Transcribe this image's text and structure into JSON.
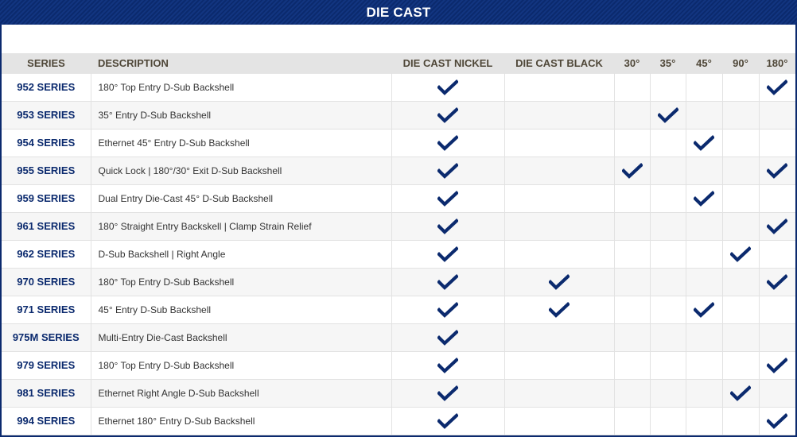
{
  "title": "DIE CAST",
  "headers": [
    "SERIES",
    "DESCRIPTION",
    "DIE CAST NICKEL",
    "DIE CAST BLACK",
    "30°",
    "35°",
    "45°",
    "90°",
    "180°"
  ],
  "check_color": "#0b2a6e",
  "check_icon": "checkmark-icon",
  "rows": [
    {
      "series": "952 SERIES",
      "description": "180° Top Entry D-Sub Backshell",
      "checks": [
        true,
        false,
        false,
        false,
        false,
        false,
        true
      ]
    },
    {
      "series": "953 SERIES",
      "description": "35° Entry D-Sub Backshell",
      "checks": [
        true,
        false,
        false,
        true,
        false,
        false,
        false
      ]
    },
    {
      "series": "954 SERIES",
      "description": "Ethernet 45° Entry D-Sub Backshell",
      "checks": [
        true,
        false,
        false,
        false,
        true,
        false,
        false
      ]
    },
    {
      "series": "955 SERIES",
      "description": "Quick Lock | 180°/30° Exit D-Sub Backshell",
      "checks": [
        true,
        false,
        true,
        false,
        false,
        false,
        true
      ]
    },
    {
      "series": "959 SERIES",
      "description": "Dual Entry Die-Cast 45° D-Sub Backshell",
      "checks": [
        true,
        false,
        false,
        false,
        true,
        false,
        false
      ]
    },
    {
      "series": "961 SERIES",
      "description": "180° Straight Entry Backskell | Clamp Strain Relief",
      "checks": [
        true,
        false,
        false,
        false,
        false,
        false,
        true
      ]
    },
    {
      "series": "962 SERIES",
      "description": "D-Sub Backshell | Right Angle",
      "checks": [
        true,
        false,
        false,
        false,
        false,
        true,
        false
      ]
    },
    {
      "series": "970 SERIES",
      "description": "180° Top Entry D-Sub Backshell",
      "checks": [
        true,
        true,
        false,
        false,
        false,
        false,
        true
      ]
    },
    {
      "series": "971 SERIES",
      "description": "45° Entry D-Sub Backshell",
      "checks": [
        true,
        true,
        false,
        false,
        true,
        false,
        false
      ]
    },
    {
      "series": "975M SERIES",
      "description": "Multi-Entry Die-Cast Backshell",
      "checks": [
        true,
        false,
        false,
        false,
        false,
        false,
        false
      ]
    },
    {
      "series": "979 SERIES",
      "description": "180° Top Entry D-Sub Backshell",
      "checks": [
        true,
        false,
        false,
        false,
        false,
        false,
        true
      ]
    },
    {
      "series": "981 SERIES",
      "description": "Ethernet Right Angle D-Sub Backshell",
      "checks": [
        true,
        false,
        false,
        false,
        false,
        true,
        false
      ]
    },
    {
      "series": "994 SERIES",
      "description": "Ethernet 180° Entry D-Sub Backshell",
      "checks": [
        true,
        false,
        false,
        false,
        false,
        false,
        true
      ]
    }
  ]
}
